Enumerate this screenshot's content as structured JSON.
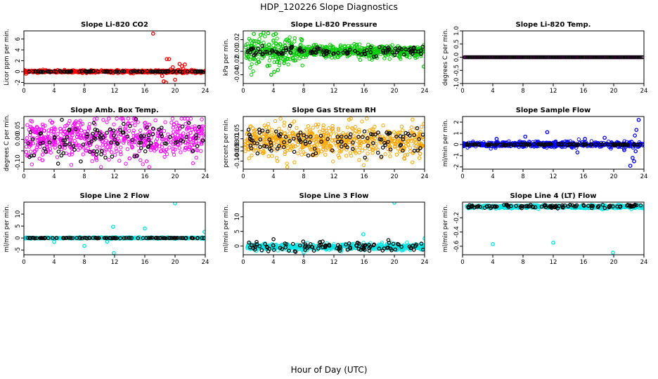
{
  "figure": {
    "title": "HDP_120226  Slope Diagnostics",
    "xlabel": "Hour of Day (UTC)"
  },
  "chart_data": [
    {
      "type": "scatter",
      "title": "Slope Li-820 CO2",
      "ylabel": "Licor ppm per min.",
      "xlim": [
        0,
        24
      ],
      "ylim": [
        -2.2,
        7.5
      ],
      "xticks": [
        0,
        4,
        8,
        12,
        16,
        20,
        24
      ],
      "yticks": [
        -2,
        0,
        2,
        4,
        6
      ],
      "ytick_labels": [
        "-2",
        "0",
        "2",
        "4",
        "6"
      ],
      "color": "#ff0000",
      "style": "co2",
      "outliers": [
        [
          17.1,
          7.0
        ],
        [
          18.3,
          -0.8
        ],
        [
          18.5,
          -1.8
        ],
        [
          18.8,
          -2.0
        ],
        [
          18.9,
          2.3
        ],
        [
          19.2,
          2.3
        ],
        [
          19.4,
          0.4
        ],
        [
          20.0,
          -1.5
        ],
        [
          20.4,
          0.3
        ],
        [
          20.6,
          1.4
        ],
        [
          20.9,
          1.0
        ],
        [
          21.1,
          0.5
        ],
        [
          21.3,
          1.3
        ],
        [
          19.7,
          0.8
        ]
      ]
    },
    {
      "type": "scatter",
      "title": "Slope Li-820 Pressure",
      "ylabel": "kPa per min.",
      "xlim": [
        0,
        24
      ],
      "ylim": [
        -0.055,
        0.035
      ],
      "xticks": [
        0,
        4,
        8,
        12,
        16,
        20,
        24
      ],
      "yticks": [
        -0.04,
        -0.02,
        0.0,
        0.02
      ],
      "ytick_labels": [
        "-0.04",
        "-0.02",
        "0.00",
        "0.02"
      ],
      "color": "#00cc00",
      "style": "pressure",
      "outliers": [
        [
          1.4,
          0.03
        ],
        [
          2.3,
          0.028
        ],
        [
          2.7,
          0.032
        ],
        [
          3.3,
          0.031
        ],
        [
          4.0,
          0.028
        ],
        [
          4.3,
          0.03
        ],
        [
          3.7,
          -0.04
        ],
        [
          4.1,
          -0.035
        ],
        [
          3.2,
          -0.025
        ],
        [
          4.6,
          -0.032
        ],
        [
          5.4,
          -0.02
        ],
        [
          2.0,
          -0.018
        ],
        [
          23.9,
          -0.026
        ]
      ]
    },
    {
      "type": "scatter",
      "title": "Slope Li-820 Temp.",
      "ylabel": "degrees C per min.",
      "xlim": [
        0,
        24
      ],
      "ylim": [
        -1,
        1
      ],
      "xticks": [
        0,
        4,
        8,
        12,
        16,
        20,
        24
      ],
      "yticks": [
        -1,
        -0.5,
        0,
        0.5,
        1
      ],
      "ytick_labels": [
        "-1.0",
        "-0.5",
        "0.0",
        "0.5",
        "1.0"
      ],
      "color": "#ff00ff",
      "style": "flat"
    },
    {
      "type": "scatter",
      "title": "Slope Amb. Box Temp.",
      "ylabel": "degrees C per min.",
      "xlim": [
        0,
        24
      ],
      "ylim": [
        -0.13,
        0.1
      ],
      "xticks": [
        0,
        4,
        8,
        12,
        16,
        20,
        24
      ],
      "yticks": [
        -0.1,
        -0.05,
        0,
        0.05
      ],
      "ytick_labels": [
        "-0.10",
        "",
        "0.00",
        "0.05"
      ],
      "color": "#ff00ff",
      "style": "spread",
      "spread_sd": 0.045
    },
    {
      "type": "scatter",
      "title": "Slope Gas Stream RH",
      "ylabel": "percent per min.",
      "xlim": [
        0,
        24
      ],
      "ylim": [
        -0.14,
        0.12
      ],
      "xticks": [
        0,
        4,
        8,
        12,
        16,
        20,
        24
      ],
      "yticks": [
        -0.1,
        -0.05,
        -0.03,
        0.01,
        0.05
      ],
      "ytick_labels": [
        "-0.10",
        "-0.05",
        "-0.03",
        "0.01",
        "0.05"
      ],
      "color": "#ffa500",
      "style": "spread",
      "spread_sd": 0.04
    },
    {
      "type": "scatter",
      "title": "Slope Sample Flow",
      "ylabel": "ml/min per min.",
      "xlim": [
        0,
        24
      ],
      "ylim": [
        -2.2,
        2.5
      ],
      "xticks": [
        0,
        4,
        8,
        12,
        16,
        20,
        24
      ],
      "yticks": [
        -2,
        -1,
        0,
        1,
        2
      ],
      "ytick_labels": [
        "-2",
        "-1",
        "0",
        "1",
        "2"
      ],
      "color": "#0000ff",
      "style": "sample",
      "outliers": [
        [
          23.3,
          2.2
        ],
        [
          23.0,
          1.3
        ],
        [
          22.8,
          0.8
        ],
        [
          22.5,
          -1.2
        ],
        [
          22.7,
          -1.5
        ],
        [
          22.2,
          -1.9
        ],
        [
          22.9,
          -0.6
        ],
        [
          21.4,
          -0.5
        ],
        [
          18.8,
          0.6
        ],
        [
          16.2,
          0.5
        ],
        [
          11.2,
          1.1
        ],
        [
          8.3,
          0.7
        ],
        [
          15.2,
          -0.7
        ],
        [
          4.5,
          0.5
        ]
      ]
    },
    {
      "type": "scatter",
      "title": "Slope Line 2 Flow",
      "ylabel": "ml/min per min.",
      "xlim": [
        0,
        24
      ],
      "ylim": [
        -7,
        15
      ],
      "xticks": [
        0,
        4,
        8,
        12,
        16,
        20,
        24
      ],
      "yticks": [
        -5,
        0,
        5,
        10
      ],
      "ytick_labels": [
        "-5",
        "0",
        "5",
        "10"
      ],
      "color": "#00e5e5",
      "style": "line2",
      "outliers": [
        [
          20.0,
          14.5
        ],
        [
          11.8,
          4.7
        ],
        [
          16.0,
          4.0
        ],
        [
          23.9,
          2.6
        ],
        [
          11.9,
          -6.3
        ],
        [
          8.0,
          -3.3
        ],
        [
          4.0,
          -1.6
        ],
        [
          11.0,
          -1.5
        ]
      ]
    },
    {
      "type": "scatter",
      "title": "Slope Line 3 Flow",
      "ylabel": "ml/min per min.",
      "xlim": [
        0,
        24
      ],
      "ylim": [
        -3,
        15
      ],
      "xticks": [
        0,
        4,
        8,
        12,
        16,
        20,
        24
      ],
      "yticks": [
        0,
        5,
        10
      ],
      "ytick_labels": [
        "0",
        "5",
        "10"
      ],
      "color": "#00e5e5",
      "style": "line3",
      "outliers": [
        [
          20.0,
          14.8
        ],
        [
          15.9,
          4.0
        ],
        [
          8.0,
          -2.2
        ],
        [
          24.0,
          2.6
        ]
      ]
    },
    {
      "type": "scatter",
      "title": "Slope Line 4 (LT) Flow",
      "ylabel": "ml/min per min.",
      "xlim": [
        0,
        24
      ],
      "ylim": [
        -0.72,
        0.02
      ],
      "xticks": [
        0,
        4,
        8,
        12,
        16,
        20,
        24
      ],
      "yticks": [
        -0.6,
        -0.4,
        -0.2
      ],
      "ytick_labels": [
        "-0.6",
        "-0.4",
        "-0.2"
      ],
      "color": "#00e5e5",
      "style": "line4",
      "outliers": [
        [
          4.0,
          -0.57
        ],
        [
          12.0,
          -0.55
        ],
        [
          19.9,
          -0.69
        ]
      ]
    }
  ]
}
